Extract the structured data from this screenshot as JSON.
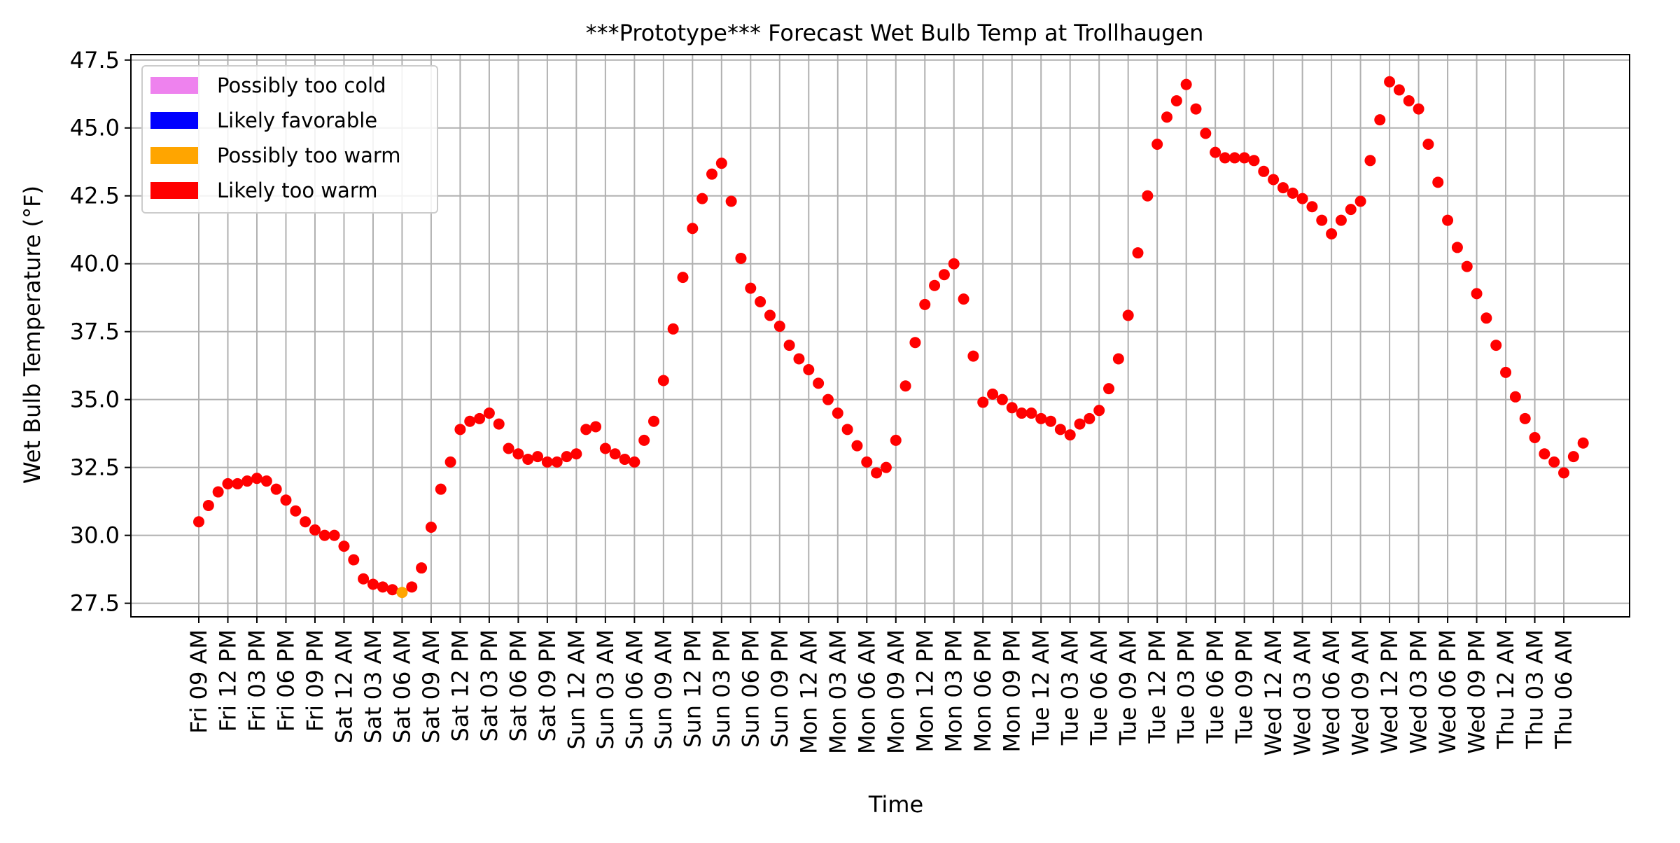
{
  "chart_data": {
    "type": "scatter",
    "title": "***Prototype*** Forecast Wet Bulb Temp at Trollhaugen",
    "xlabel": "Time",
    "ylabel": "Wet Bulb Temperature (°F)",
    "ylim": [
      27.0,
      47.7
    ],
    "yticks": [
      "27.5",
      "30.0",
      "32.5",
      "35.0",
      "37.5",
      "40.0",
      "42.5",
      "45.0",
      "47.5"
    ],
    "ytick_values": [
      27.5,
      30.0,
      32.5,
      35.0,
      37.5,
      40.0,
      42.5,
      45.0,
      47.5
    ],
    "x_start_label": "Fri 09 AM",
    "x_hours_per_point": 1,
    "xtick_every_hours": 3,
    "xticks": [
      "Fri 09 AM",
      "Fri 12 PM",
      "Fri 03 PM",
      "Fri 06 PM",
      "Fri 09 PM",
      "Sat 12 AM",
      "Sat 03 AM",
      "Sat 06 AM",
      "Sat 09 AM",
      "Sat 12 PM",
      "Sat 03 PM",
      "Sat 06 PM",
      "Sat 09 PM",
      "Sun 12 AM",
      "Sun 03 AM",
      "Sun 06 AM",
      "Sun 09 AM",
      "Sun 12 PM",
      "Sun 03 PM",
      "Sun 06 PM",
      "Sun 09 PM",
      "Mon 12 AM",
      "Mon 03 AM",
      "Mon 06 AM",
      "Mon 09 AM",
      "Mon 12 PM",
      "Mon 03 PM",
      "Mon 06 PM",
      "Mon 09 PM",
      "Tue 12 AM",
      "Tue 03 AM",
      "Tue 06 AM",
      "Tue 09 AM",
      "Tue 12 PM",
      "Tue 03 PM",
      "Tue 06 PM",
      "Tue 09 PM",
      "Wed 12 AM",
      "Wed 03 AM",
      "Wed 06 AM",
      "Wed 09 AM",
      "Wed 12 PM",
      "Wed 03 PM",
      "Wed 06 PM",
      "Wed 09 PM",
      "Thu 12 AM",
      "Thu 03 AM",
      "Thu 06 AM"
    ],
    "grid": true,
    "legend_placement": "top-left",
    "legend": [
      {
        "label": "Possibly too cold",
        "color": "#ee82ee"
      },
      {
        "label": "Likely favorable",
        "color": "#0000ff"
      },
      {
        "label": "Possibly too warm",
        "color": "#ffa500"
      },
      {
        "label": "Likely too warm",
        "color": "#ff0000"
      }
    ],
    "point_colors": {
      "default": "#ff0000",
      "possibly_too_warm": "#ffa500"
    },
    "possibly_too_warm_indices": [
      21
    ],
    "values": [
      30.5,
      31.1,
      31.6,
      31.9,
      31.9,
      32.0,
      32.1,
      32.0,
      31.7,
      31.3,
      30.9,
      30.5,
      30.2,
      30.0,
      30.0,
      29.6,
      29.1,
      28.4,
      28.2,
      28.1,
      28.0,
      27.9,
      28.1,
      28.8,
      30.3,
      31.7,
      32.7,
      33.9,
      34.2,
      34.3,
      34.5,
      34.1,
      33.2,
      33.0,
      32.8,
      32.9,
      32.7,
      32.7,
      32.9,
      33.0,
      33.9,
      34.0,
      33.2,
      33.0,
      32.8,
      32.7,
      33.5,
      34.2,
      35.7,
      37.6,
      39.5,
      41.3,
      42.4,
      43.3,
      43.7,
      42.3,
      40.2,
      39.1,
      38.6,
      38.1,
      37.7,
      37.0,
      36.5,
      36.1,
      35.6,
      35.0,
      34.5,
      33.9,
      33.3,
      32.7,
      32.3,
      32.5,
      33.5,
      35.5,
      37.1,
      38.5,
      39.2,
      39.6,
      40.0,
      38.7,
      36.6,
      34.9,
      35.2,
      35.0,
      34.7,
      34.5,
      34.5,
      34.3,
      34.2,
      33.9,
      33.7,
      34.1,
      34.3,
      34.6,
      35.4,
      36.5,
      38.1,
      40.4,
      42.5,
      44.4,
      45.4,
      46.0,
      46.6,
      45.7,
      44.8,
      44.1,
      43.9,
      43.9,
      43.9,
      43.8,
      43.4,
      43.1,
      42.8,
      42.6,
      42.4,
      42.1,
      41.6,
      41.1,
      41.6,
      42.0,
      42.3,
      43.8,
      45.3,
      46.7,
      46.4,
      46.0,
      45.7,
      44.4,
      43.0,
      41.6,
      40.6,
      39.9,
      38.9,
      38.0,
      37.0,
      36.0,
      35.1,
      34.3,
      33.6,
      33.0,
      32.7,
      32.3,
      32.9,
      33.4
    ]
  }
}
